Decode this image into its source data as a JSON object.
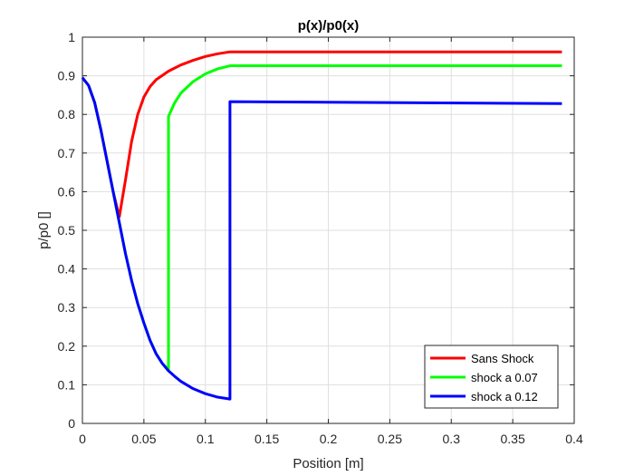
{
  "chart_data": {
    "type": "line",
    "title": "p(x)/p0(x)",
    "xlabel": "Position [m]",
    "ylabel": "p/p0 []",
    "xlim": [
      0,
      0.4
    ],
    "ylim": [
      0,
      1
    ],
    "xticks": [
      0,
      0.05,
      0.1,
      0.15,
      0.2,
      0.25,
      0.3,
      0.35,
      0.4
    ],
    "xtick_labels": [
      "0",
      "0.05",
      "0.1",
      "0.15",
      "0.2",
      "0.25",
      "0.3",
      "0.35",
      "0.4"
    ],
    "yticks": [
      0,
      0.1,
      0.2,
      0.3,
      0.4,
      0.5,
      0.6,
      0.7,
      0.8,
      0.9,
      1
    ],
    "ytick_labels": [
      "0",
      "0.1",
      "0.2",
      "0.3",
      "0.4",
      "0.5",
      "0.6",
      "0.7",
      "0.8",
      "0.9",
      "1"
    ],
    "grid": true,
    "legend_position": "bottom-right",
    "series": [
      {
        "name": "Sans Shock",
        "color": "#ff0000",
        "points": [
          [
            0,
            0.895
          ],
          [
            0.005,
            0.875
          ],
          [
            0.01,
            0.83
          ],
          [
            0.015,
            0.76
          ],
          [
            0.02,
            0.68
          ],
          [
            0.025,
            0.6
          ],
          [
            0.03,
            0.535
          ],
          [
            0.035,
            0.63
          ],
          [
            0.04,
            0.73
          ],
          [
            0.045,
            0.8
          ],
          [
            0.05,
            0.845
          ],
          [
            0.055,
            0.872
          ],
          [
            0.06,
            0.89
          ],
          [
            0.07,
            0.912
          ],
          [
            0.08,
            0.928
          ],
          [
            0.09,
            0.94
          ],
          [
            0.1,
            0.95
          ],
          [
            0.11,
            0.957
          ],
          [
            0.12,
            0.962
          ],
          [
            0.39,
            0.962
          ]
        ]
      },
      {
        "name": "shock a 0.07",
        "color": "#00ff00",
        "points": [
          [
            0,
            0.895
          ],
          [
            0.005,
            0.875
          ],
          [
            0.01,
            0.83
          ],
          [
            0.015,
            0.76
          ],
          [
            0.02,
            0.68
          ],
          [
            0.025,
            0.6
          ],
          [
            0.03,
            0.52
          ],
          [
            0.035,
            0.44
          ],
          [
            0.04,
            0.37
          ],
          [
            0.045,
            0.31
          ],
          [
            0.05,
            0.26
          ],
          [
            0.055,
            0.215
          ],
          [
            0.06,
            0.18
          ],
          [
            0.065,
            0.155
          ],
          [
            0.07,
            0.14
          ],
          [
            0.07,
            0.795
          ],
          [
            0.075,
            0.83
          ],
          [
            0.08,
            0.855
          ],
          [
            0.09,
            0.885
          ],
          [
            0.1,
            0.905
          ],
          [
            0.11,
            0.918
          ],
          [
            0.12,
            0.926
          ],
          [
            0.39,
            0.926
          ]
        ]
      },
      {
        "name": "shock a 0.12",
        "color": "#0000ff",
        "points": [
          [
            0,
            0.895
          ],
          [
            0.005,
            0.875
          ],
          [
            0.01,
            0.83
          ],
          [
            0.015,
            0.76
          ],
          [
            0.02,
            0.68
          ],
          [
            0.025,
            0.6
          ],
          [
            0.03,
            0.52
          ],
          [
            0.035,
            0.44
          ],
          [
            0.04,
            0.37
          ],
          [
            0.045,
            0.31
          ],
          [
            0.05,
            0.26
          ],
          [
            0.055,
            0.215
          ],
          [
            0.06,
            0.18
          ],
          [
            0.065,
            0.155
          ],
          [
            0.07,
            0.136
          ],
          [
            0.075,
            0.122
          ],
          [
            0.08,
            0.109
          ],
          [
            0.09,
            0.09
          ],
          [
            0.1,
            0.077
          ],
          [
            0.11,
            0.068
          ],
          [
            0.12,
            0.063
          ],
          [
            0.12,
            0.833
          ],
          [
            0.39,
            0.828
          ]
        ]
      }
    ]
  }
}
